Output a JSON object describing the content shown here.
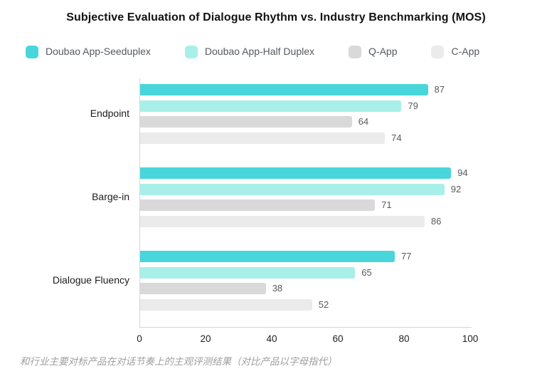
{
  "title": "Subjective Evaluation of Dialogue Rhythm vs. Industry Benchmarking (MOS)",
  "caption": "和行业主要对标产品在对话节奏上的主观评测结果（对比产品以字母指代）",
  "colors": {
    "axis": "#d6d6d6",
    "value_label": "#595959",
    "tick_label": "#1f1f1f",
    "legend_label": "#55595e",
    "caption": "#9e9e9e",
    "title": "#121212"
  },
  "chart_data": {
    "type": "bar",
    "orientation": "horizontal",
    "title": "Subjective Evaluation of Dialogue Rhythm vs. Industry Benchmarking (MOS)",
    "categories": [
      "Endpoint",
      "Barge-in",
      "Dialogue Fluency"
    ],
    "series": [
      {
        "name": "Doubao App-Seeduplex",
        "color": "#48d6da",
        "values": [
          87,
          94,
          77
        ]
      },
      {
        "name": "Doubao App-Half Duplex",
        "color": "#a9efe9",
        "values": [
          79,
          92,
          65
        ]
      },
      {
        "name": "Q-App",
        "color": "#d9d9d9",
        "values": [
          64,
          71,
          38
        ]
      },
      {
        "name": "C-App",
        "color": "#ebebeb",
        "values": [
          74,
          86,
          52
        ]
      }
    ],
    "x_ticks": [
      0,
      20,
      40,
      60,
      80,
      100
    ],
    "xlim": [
      0,
      100
    ],
    "grid": false,
    "legend_position": "top",
    "value_labels": true
  }
}
